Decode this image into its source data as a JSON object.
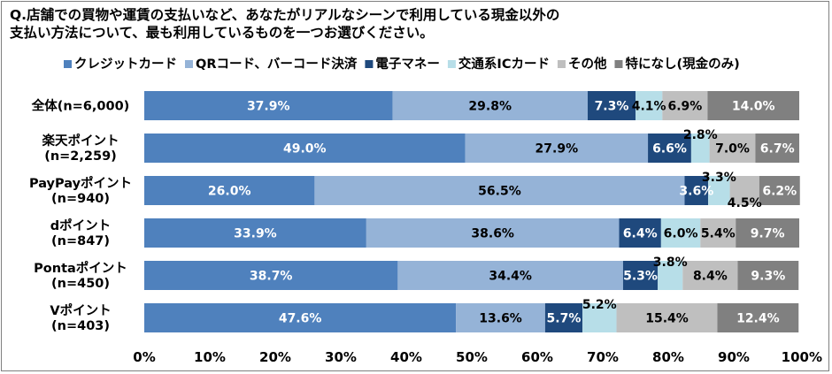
{
  "title": {
    "line1": "Q.店舗での買物や運賃の支払いなど、あなたがリアルなシーンで利用している現金以外の",
    "line2": "支払い方法について、最も利用しているものを一つお選びください。"
  },
  "chart_data": {
    "type": "bar",
    "orientation": "horizontal",
    "stacked": true,
    "stack_mode": "percent",
    "title": "Q.店舗での買物や運賃の支払いなど、あなたがリアルなシーンで利用している現金以外の支払い方法について、最も利用しているものを一つお選びください。",
    "legend_position": "top",
    "categories": [
      [
        "全体(n=6,000)"
      ],
      [
        "楽天ポイント",
        "(n=2,259)"
      ],
      [
        "PayPayポイント",
        "(n=940)"
      ],
      [
        "dポイント",
        "(n=847)"
      ],
      [
        "Pontaポイント",
        "(n=450)"
      ],
      [
        "Vポイント",
        "(n=403)"
      ]
    ],
    "series": [
      {
        "name": "クレジットカード",
        "color": "#4f81bd",
        "label_color": "#ffffff",
        "values": [
          37.9,
          49.0,
          26.0,
          33.9,
          38.7,
          47.6
        ]
      },
      {
        "name": "QRコード、バーコード決済",
        "color": "#95b3d7",
        "label_color": "#000000",
        "values": [
          29.8,
          27.9,
          56.5,
          38.6,
          34.4,
          13.6
        ]
      },
      {
        "name": "電子マネー",
        "color": "#1f497d",
        "label_color": "#ffffff",
        "values": [
          7.3,
          6.6,
          3.6,
          6.4,
          5.3,
          5.7
        ]
      },
      {
        "name": "交通系ICカード",
        "color": "#b7dee8",
        "label_color": "#000000",
        "values": [
          4.1,
          2.8,
          3.3,
          6.0,
          3.8,
          5.2
        ]
      },
      {
        "name": "その他",
        "color": "#bfbfbf",
        "label_color": "#000000",
        "values": [
          6.9,
          7.0,
          4.5,
          5.4,
          8.4,
          15.4
        ]
      },
      {
        "name": "特になし(現金のみ)",
        "color": "#808080",
        "label_color": "#ffffff",
        "values": [
          14.0,
          6.7,
          6.2,
          9.7,
          9.3,
          12.4
        ]
      }
    ],
    "xlim": [
      0,
      100
    ],
    "x_ticks": [
      "0%",
      "10%",
      "20%",
      "30%",
      "40%",
      "50%",
      "60%",
      "70%",
      "80%",
      "90%",
      "100%"
    ],
    "label_suffix": "%",
    "grid": false
  }
}
